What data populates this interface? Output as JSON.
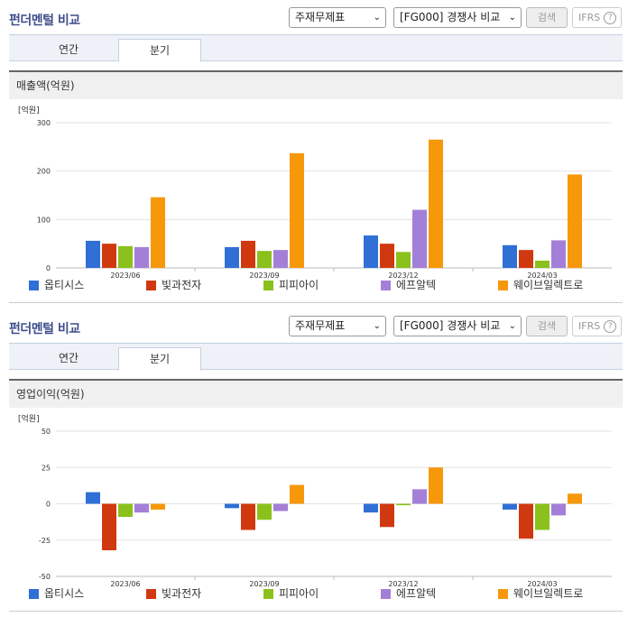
{
  "panels": [
    {
      "title": "펀더멘털 비교",
      "select1": "주재무제표",
      "select2": "[FG000] 경쟁사 비교",
      "search_label": "검색",
      "ifrs_label": "IFRS",
      "help_icon": "help-icon",
      "tabs": [
        {
          "label": "연간"
        },
        {
          "label": "분기",
          "active": true
        }
      ],
      "section_title": "매출액(억원)",
      "chart_data": {
        "type": "bar",
        "unit_label": "[억원]",
        "categories": [
          "2023/06",
          "2023/09",
          "2023/12",
          "2024/03"
        ],
        "ylim": [
          0,
          300
        ],
        "yticks": [
          0,
          100,
          200,
          300
        ],
        "series": [
          {
            "name": "옵티시스",
            "color": "#2f6fd6",
            "values": [
              56,
              43,
              67,
              47
            ]
          },
          {
            "name": "빛과전자",
            "color": "#d0390f",
            "values": [
              50,
              56,
              50,
              37
            ]
          },
          {
            "name": "피피아이",
            "color": "#8ac11d",
            "values": [
              45,
              35,
              33,
              15
            ]
          },
          {
            "name": "에프알텍",
            "color": "#a47fd8",
            "values": [
              43,
              37,
              120,
              57
            ]
          },
          {
            "name": "웨이브일렉트로",
            "color": "#f7980b",
            "values": [
              146,
              237,
              265,
              193
            ]
          }
        ],
        "legend": "bottom"
      }
    },
    {
      "title": "펀더멘털 비교",
      "select1": "주재무제표",
      "select2": "[FG000] 경쟁사 비교",
      "search_label": "검색",
      "ifrs_label": "IFRS",
      "help_icon": "help-icon",
      "tabs": [
        {
          "label": "연간"
        },
        {
          "label": "분기",
          "active": true
        }
      ],
      "section_title": "영업이익(억원)",
      "chart_data": {
        "type": "bar",
        "unit_label": "[억원]",
        "categories": [
          "2023/06",
          "2023/09",
          "2023/12",
          "2024/03"
        ],
        "ylim": [
          -50,
          50
        ],
        "yticks": [
          -50,
          -25,
          0,
          25,
          50
        ],
        "series": [
          {
            "name": "옵티시스",
            "color": "#2f6fd6",
            "values": [
              8,
              -3,
              -6,
              -4
            ]
          },
          {
            "name": "빛과전자",
            "color": "#d0390f",
            "values": [
              -32,
              -18,
              -16,
              -24
            ]
          },
          {
            "name": "피피아이",
            "color": "#8ac11d",
            "values": [
              -9,
              -11,
              -1,
              -18
            ]
          },
          {
            "name": "에프알텍",
            "color": "#a47fd8",
            "values": [
              -6,
              -5,
              10,
              -8
            ]
          },
          {
            "name": "웨이브일렉트로",
            "color": "#f7980b",
            "values": [
              -4,
              13,
              25,
              7
            ]
          }
        ],
        "legend": "bottom"
      }
    }
  ]
}
